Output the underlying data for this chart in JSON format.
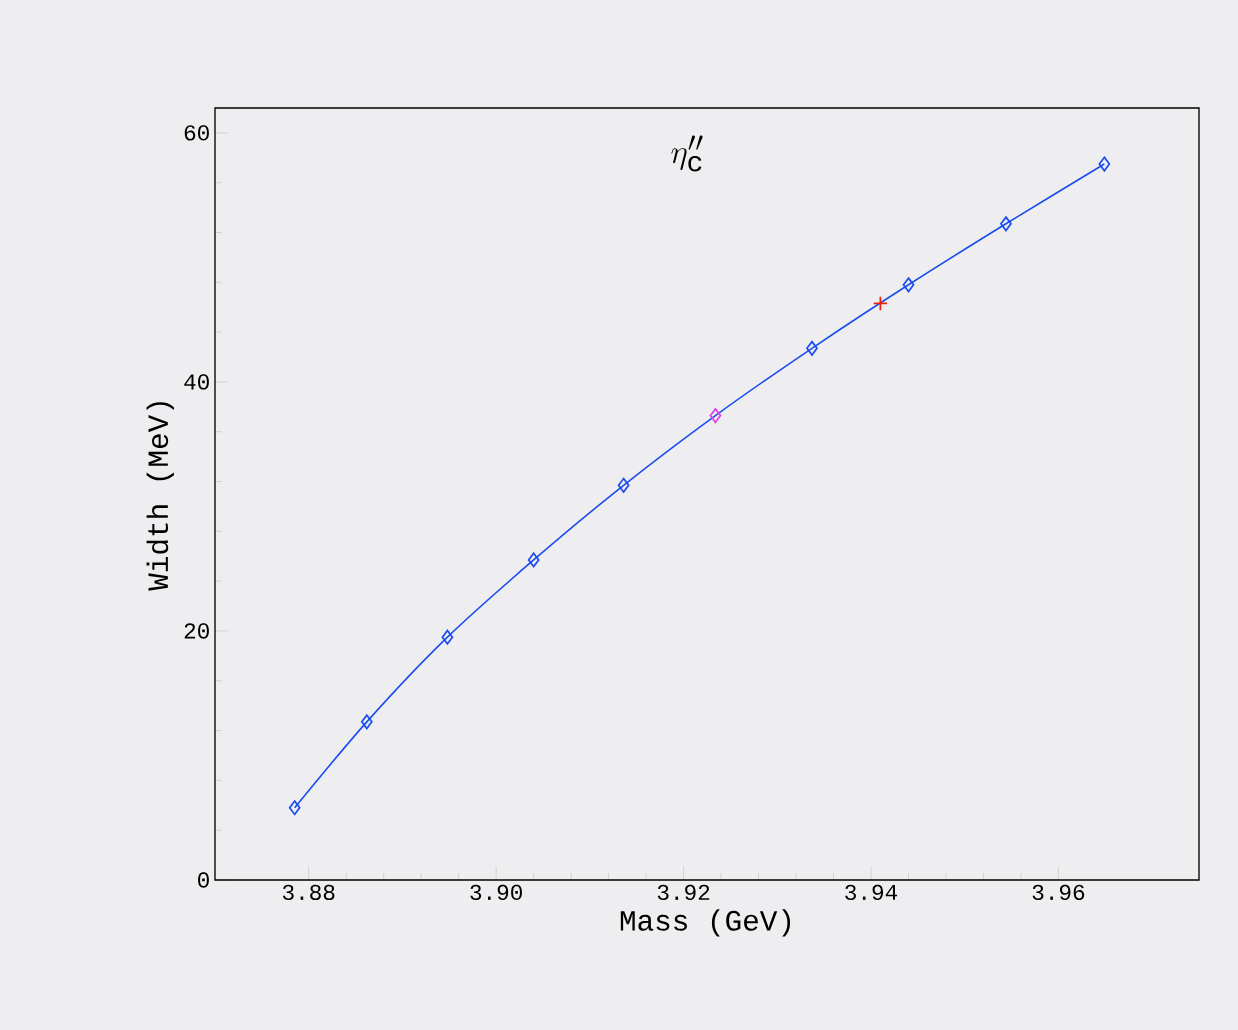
{
  "chart_data": {
    "type": "line",
    "title": "\\eta''_{\\mathrm{c}}",
    "xlabel": "Mass (GeV)",
    "ylabel": "Width (MeV)",
    "xlim": [
      3.87,
      3.975
    ],
    "ylim": [
      0,
      62
    ],
    "xticks": [
      {
        "value": 3.88,
        "label": "3.88"
      },
      {
        "value": 3.9,
        "label": "3.90"
      },
      {
        "value": 3.92,
        "label": "3.92"
      },
      {
        "value": 3.94,
        "label": "3.94"
      },
      {
        "value": 3.96,
        "label": "3.96"
      }
    ],
    "yticks": [
      0,
      20,
      40,
      60
    ],
    "grid": false,
    "marker": "diamond",
    "line_style": "solid",
    "series": [
      {
        "color": "#1a4cf0",
        "x": [
          3.8785,
          3.8862,
          3.8948,
          3.904,
          3.9136,
          3.9234,
          3.9337,
          3.944,
          3.9544,
          3.9649
        ],
        "values": [
          5.8,
          12.7,
          19.5,
          25.7,
          31.7,
          37.3,
          42.7,
          47.8,
          52.7,
          57.5
        ],
        "colors": [
          "#1a4cf0",
          "#1a4cf0",
          "#1a4cf0",
          "#1a4cf0",
          "#1a4cf0",
          "#e040f0",
          "#1a4cf0",
          "#1a4cf0",
          "#1a4cf0",
          "#1a4cf0"
        ]
      },
      {
        "type": "scatter",
        "color": "#f02010",
        "marker": "cross",
        "x": [
          3.941
        ],
        "values": [
          46.3
        ]
      }
    ]
  }
}
